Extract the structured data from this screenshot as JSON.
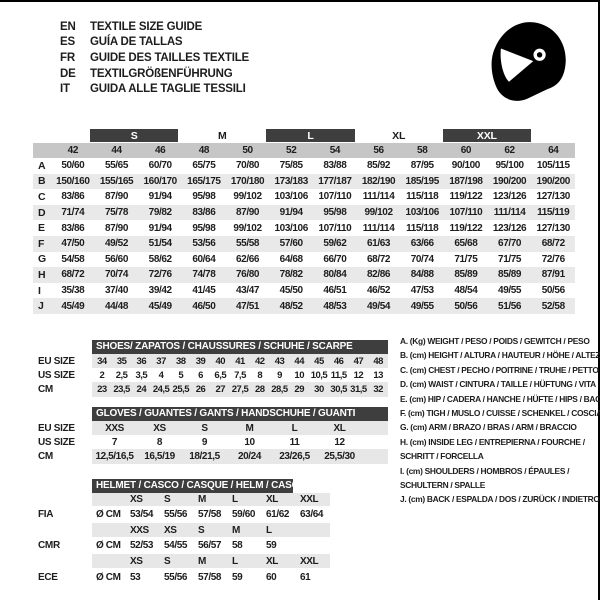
{
  "colors": {
    "dark_bar": "#3e3e3e",
    "size_band": "#c6c6c6",
    "row_stripe": "#e9e9e9",
    "text": "#1d1d1d"
  },
  "header": {
    "languages": [
      {
        "code": "EN",
        "title": "TEXTILE SIZE GUIDE"
      },
      {
        "code": "ES",
        "title": "GUÍA DE TALLAS"
      },
      {
        "code": "FR",
        "title": "GUIDE DES TAILLES TEXTILE"
      },
      {
        "code": "DE",
        "title": "TEXTILGRÖßENFÜHRUNG"
      },
      {
        "code": "IT",
        "title": "GUIDA ALLE TAGLIE TESSILI"
      }
    ],
    "logo_icon": "racing-helmet-icon"
  },
  "textile": {
    "size_groups": [
      {
        "label": "S",
        "style": "dark"
      },
      {
        "label": "M",
        "style": "light"
      },
      {
        "label": "L",
        "style": "dark"
      },
      {
        "label": "XL",
        "style": "light"
      },
      {
        "label": "XXL",
        "style": "dark"
      }
    ],
    "sizes": [
      "42",
      "44",
      "46",
      "48",
      "50",
      "52",
      "54",
      "56",
      "58",
      "60",
      "62",
      "64"
    ],
    "rows": [
      {
        "key": "A",
        "values": [
          "50/60",
          "55/65",
          "60/70",
          "65/75",
          "70/80",
          "75/85",
          "83/88",
          "85/92",
          "87/95",
          "90/100",
          "95/100",
          "105/115"
        ]
      },
      {
        "key": "B",
        "values": [
          "150/160",
          "155/165",
          "160/170",
          "165/175",
          "170/180",
          "173/183",
          "177/187",
          "182/190",
          "185/195",
          "187/198",
          "190/200",
          "190/200"
        ]
      },
      {
        "key": "C",
        "values": [
          "83/86",
          "87/90",
          "91/94",
          "95/98",
          "99/102",
          "103/106",
          "107/110",
          "111/114",
          "115/118",
          "119/122",
          "123/126",
          "127/130"
        ]
      },
      {
        "key": "D",
        "values": [
          "71/74",
          "75/78",
          "79/82",
          "83/86",
          "87/90",
          "91/94",
          "95/98",
          "99/102",
          "103/106",
          "107/110",
          "111/114",
          "115/119"
        ]
      },
      {
        "key": "E",
        "values": [
          "83/86",
          "87/90",
          "91/94",
          "95/98",
          "99/102",
          "103/106",
          "107/110",
          "111/114",
          "115/118",
          "119/122",
          "123/126",
          "127/130"
        ]
      },
      {
        "key": "F",
        "values": [
          "47/50",
          "49/52",
          "51/54",
          "53/56",
          "55/58",
          "57/60",
          "59/62",
          "61/63",
          "63/66",
          "65/68",
          "67/70",
          "68/72"
        ]
      },
      {
        "key": "G",
        "values": [
          "54/58",
          "56/60",
          "58/62",
          "60/64",
          "62/66",
          "64/68",
          "66/70",
          "68/72",
          "70/74",
          "71/75",
          "71/75",
          "72/76"
        ]
      },
      {
        "key": "H",
        "values": [
          "68/72",
          "70/74",
          "72/76",
          "74/78",
          "76/80",
          "78/82",
          "80/84",
          "82/86",
          "84/88",
          "85/89",
          "85/89",
          "87/91"
        ]
      },
      {
        "key": "I",
        "values": [
          "35/38",
          "37/40",
          "39/42",
          "41/45",
          "43/47",
          "45/50",
          "46/51",
          "46/52",
          "47/53",
          "48/54",
          "49/55",
          "50/56"
        ]
      },
      {
        "key": "J",
        "values": [
          "45/49",
          "44/48",
          "45/49",
          "46/50",
          "47/51",
          "48/52",
          "48/53",
          "49/54",
          "49/55",
          "50/56",
          "51/56",
          "52/58"
        ]
      }
    ]
  },
  "shoes": {
    "title": "SHOES/ ZAPATOS / CHAUSSURES / SCHUHE / SCARPE",
    "rows": [
      {
        "label": "EU SIZE",
        "shaded": true,
        "values": [
          "34",
          "35",
          "36",
          "37",
          "38",
          "39",
          "40",
          "41",
          "42",
          "43",
          "44",
          "45",
          "46",
          "47",
          "48"
        ]
      },
      {
        "label": "US SIZE",
        "shaded": false,
        "values": [
          "2",
          "2,5",
          "3,5",
          "4",
          "5",
          "6",
          "6,5",
          "7,5",
          "8",
          "9",
          "10",
          "10,5",
          "11,5",
          "12",
          "13"
        ]
      },
      {
        "label": "CM",
        "shaded": true,
        "values": [
          "23",
          "23,5",
          "24",
          "24,5",
          "25,5",
          "26",
          "27",
          "27,5",
          "28",
          "28,5",
          "29",
          "30",
          "30,5",
          "31,5",
          "32"
        ]
      }
    ]
  },
  "gloves": {
    "title": "GLOVES / GUANTES / GANTS / HANDSCHUHE / GUANTI",
    "rows": [
      {
        "label": "EU SIZE",
        "shaded": true,
        "values": [
          "XXS",
          "XS",
          "S",
          "M",
          "L",
          "XL"
        ]
      },
      {
        "label": "US SIZE",
        "shaded": false,
        "values": [
          "7",
          "8",
          "9",
          "10",
          "11",
          "12"
        ]
      },
      {
        "label": "CM",
        "shaded": true,
        "values": [
          "12,5/16,5",
          "16,5/19",
          "18/21,5",
          "20/24",
          "23/26,5",
          "25,5/30"
        ]
      }
    ]
  },
  "helmet": {
    "title": "HELMET / CASCO / CASQUE / HELM / CASCO",
    "groups": [
      {
        "label": "FIA",
        "unit": "Ø CM",
        "sizes": [
          "XS",
          "S",
          "M",
          "L",
          "XL",
          "XXL"
        ],
        "values": [
          "53/54",
          "55/56",
          "57/58",
          "59/60",
          "61/62",
          "63/64"
        ]
      },
      {
        "label": "CMR",
        "unit": "Ø CM",
        "sizes": [
          "XXS",
          "XS",
          "S",
          "M",
          "L",
          ""
        ],
        "values": [
          "52/53",
          "54/55",
          "56/57",
          "58",
          "59",
          ""
        ]
      },
      {
        "label": "ECE",
        "unit": "Ø CM",
        "sizes": [
          "XS",
          "S",
          "M",
          "L",
          "XL",
          "XXL"
        ],
        "values": [
          "53",
          "55/56",
          "57/58",
          "59",
          "60",
          "61"
        ]
      }
    ]
  },
  "legend": {
    "lines": [
      "A. (Kg) WEIGHT / PESO / POIDS / GEWITCH / PESO",
      "B. (cm) HEIGHT / ALTURA / HAUTEUR / HÖHE / ALTEZZA",
      "C. (cm) CHEST / PECHO / POITRINE / TRUHE / PETTO",
      "D. (cm) WAIST / CINTURA / TAILLE / HÜFTUNG / VITA",
      "E. (cm) HIP / CADERA / HANCHE / HÜFTE / HIPS / BACINO",
      "F. (cm) TIGH / MUSLO / CUISSE / SCHENKEL / COSCIA",
      "G. (cm) ARM / BRAZO / BRAS / ARM / BRACCIO",
      "H. (cm) INSIDE LEG / ENTREPIERNA / FOURCHE /",
      "SCHRITT / FORCELLA",
      "I. (cm) SHOULDERS / HOMBROS / ÉPAULES /",
      "SCHULTERN / SPALLE",
      "J. (cm) BACK / ESPALDA / DOS / ZURÜCK / INDIETRO"
    ]
  }
}
